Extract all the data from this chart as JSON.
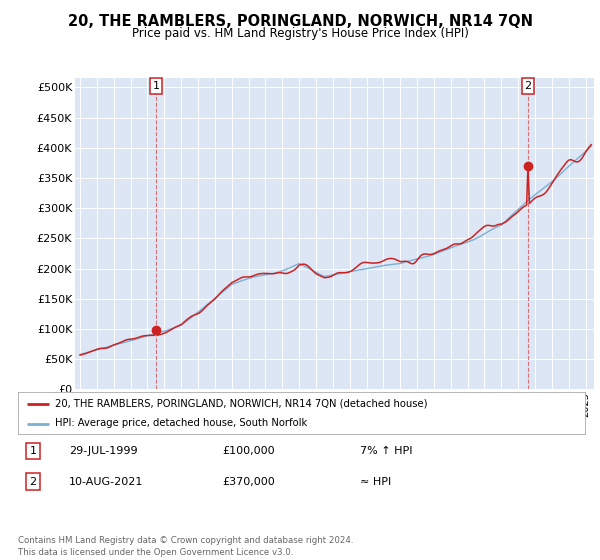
{
  "title": "20, THE RAMBLERS, PORINGLAND, NORWICH, NR14 7QN",
  "subtitle": "Price paid vs. HM Land Registry's House Price Index (HPI)",
  "bg_color": "#dce6f5",
  "hpi_color": "#7bafd4",
  "price_color": "#cc2222",
  "marker_color": "#cc2222",
  "yticks": [
    0,
    50000,
    100000,
    150000,
    200000,
    250000,
    300000,
    350000,
    400000,
    450000,
    500000
  ],
  "ytick_labels": [
    "£0",
    "£50K",
    "£100K",
    "£150K",
    "£200K",
    "£250K",
    "£300K",
    "£350K",
    "£400K",
    "£450K",
    "£500K"
  ],
  "legend_line1": "20, THE RAMBLERS, PORINGLAND, NORWICH, NR14 7QN (detached house)",
  "legend_line2": "HPI: Average price, detached house, South Norfolk",
  "annotation1_label": "1",
  "annotation1_text": "29-JUL-1999",
  "annotation1_price": "£100,000",
  "annotation1_note": "7% ↑ HPI",
  "annotation2_label": "2",
  "annotation2_text": "10-AUG-2021",
  "annotation2_price": "£370,000",
  "annotation2_note": "≈ HPI",
  "footer": "Contains HM Land Registry data © Crown copyright and database right 2024.\nThis data is licensed under the Open Government Licence v3.0."
}
